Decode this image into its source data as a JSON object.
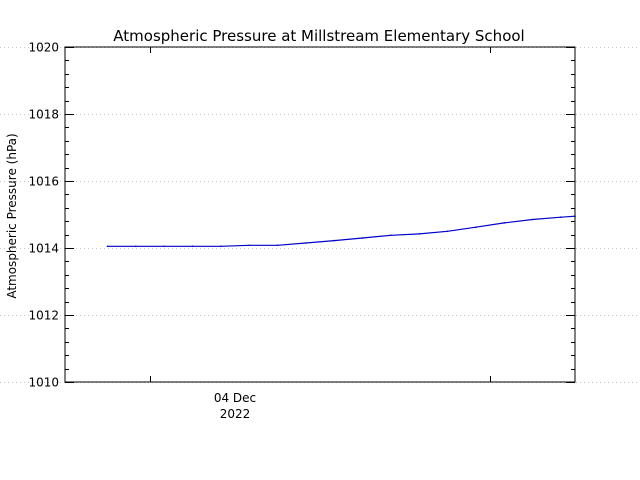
{
  "chart_data": {
    "type": "line",
    "title": "Atmospheric Pressure at Millstream Elementary School",
    "xlabel": "",
    "ylabel": "Atmospheric Pressure (hPa)",
    "x_tick_label": {
      "day": "04 Dec",
      "year": "2022"
    },
    "ylim": [
      1010,
      1020
    ],
    "yticks": [
      "1010",
      "1012",
      "1014",
      "1016",
      "1018",
      "1020"
    ],
    "grid": true,
    "series": [
      {
        "color": "#0000cc",
        "points": [
          [
            "03 Dec 2022 21:00",
            1014.05
          ],
          [
            "03 Dec 2022 23:00",
            1014.05
          ],
          [
            "04 Dec 2022 01:00",
            1014.05
          ],
          [
            "04 Dec 2022 03:00",
            1014.05
          ],
          [
            "04 Dec 2022 05:00",
            1014.05
          ],
          [
            "04 Dec 2022 07:00",
            1014.08
          ],
          [
            "04 Dec 2022 09:00",
            1014.08
          ],
          [
            "04 Dec 2022 11:00",
            1014.15
          ],
          [
            "04 Dec 2022 13:00",
            1014.22
          ],
          [
            "04 Dec 2022 15:00",
            1014.3
          ],
          [
            "04 Dec 2022 17:00",
            1014.38
          ],
          [
            "04 Dec 2022 19:00",
            1014.42
          ],
          [
            "04 Dec 2022 21:00",
            1014.5
          ],
          [
            "04 Dec 2022 23:00",
            1014.62
          ],
          [
            "05 Dec 2022 01:00",
            1014.75
          ],
          [
            "05 Dec 2022 03:00",
            1014.85
          ],
          [
            "05 Dec 2022 05:00",
            1014.92
          ],
          [
            "05 Dec 2022 06:00",
            1014.95
          ]
        ]
      }
    ]
  }
}
